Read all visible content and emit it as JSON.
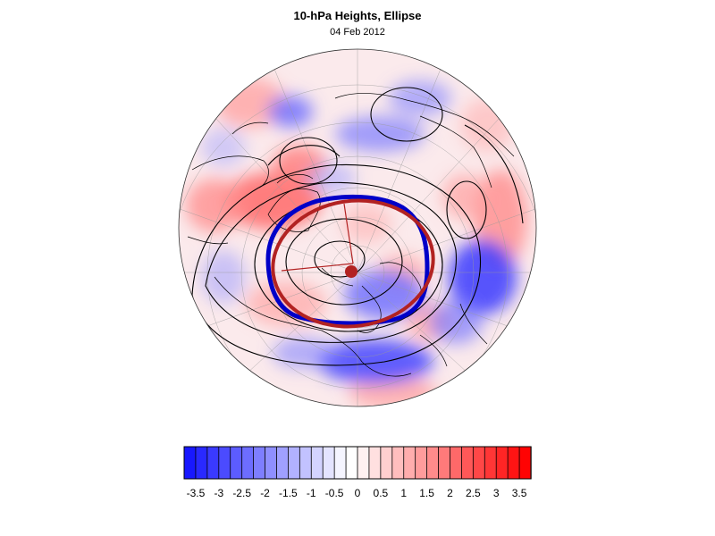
{
  "header": {
    "title": "10-hPa Heights, Ellipse",
    "date": "04 Feb 2012"
  },
  "map": {
    "projection": "north polar stereographic",
    "pole_marker_color": "#b22222",
    "ellipse_colors": {
      "fitted": "#b22222",
      "vortex_edge": "#0000c8"
    },
    "contour_color": "#000000",
    "anomaly_palette": {
      "negative": "#0000ff",
      "neutral": "#ffffff",
      "positive": "#ff0000"
    }
  },
  "colorbar": {
    "min": -3.75,
    "max": 3.75,
    "step": 0.25,
    "tick_labels": [
      "-3.5",
      "-3",
      "-2.5",
      "-2",
      "-1.5",
      "-1",
      "-0.5",
      "0",
      "0.5",
      "1",
      "1.5",
      "2",
      "2.5",
      "3",
      "3.5"
    ]
  }
}
